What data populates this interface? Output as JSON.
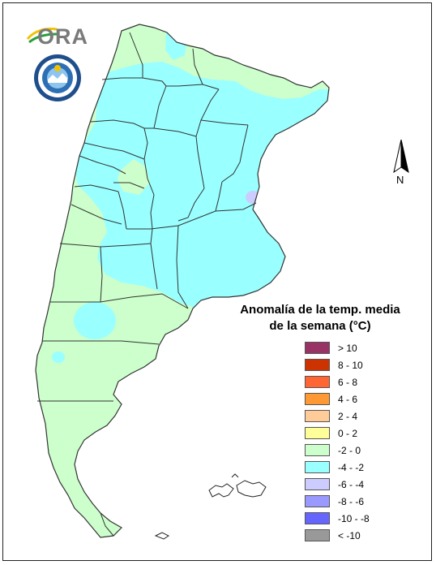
{
  "logo": {
    "text": "ORA"
  },
  "north_label": "N",
  "legend": {
    "title_line1": "Anomalía de la temp. media",
    "title_line2": "de la semana (°C)",
    "items": [
      {
        "label": "> 10",
        "color": "#993366"
      },
      {
        "label": "8 - 10",
        "color": "#cc3300"
      },
      {
        "label": "6 - 8",
        "color": "#ff6633"
      },
      {
        "label": "4 - 6",
        "color": "#ff9933"
      },
      {
        "label": "2 - 4",
        "color": "#ffcc99"
      },
      {
        "label": "0 - 2",
        "color": "#ffff99"
      },
      {
        "label": "-2 - 0",
        "color": "#ccffcc"
      },
      {
        "label": "-4 - -2",
        "color": "#99ffff"
      },
      {
        "label": "-6 - -4",
        "color": "#ccccff"
      },
      {
        "label": "-8 - -6",
        "color": "#9999ff"
      },
      {
        "label": "-10 - -8",
        "color": "#6666ff"
      },
      {
        "label": "< -10",
        "color": "#999999"
      }
    ]
  },
  "map": {
    "land_color": "#ccffcc",
    "anomaly_color": "#99ffff",
    "accent_color": "#ccccff",
    "border_color": "#333333"
  }
}
